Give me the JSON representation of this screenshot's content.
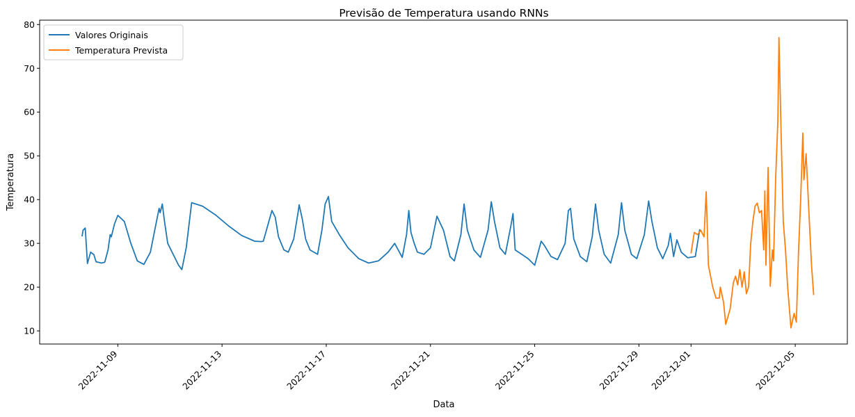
{
  "chart_data": {
    "type": "line",
    "title": "Previsão de Temperatura usando RNNs",
    "xlabel": "Data",
    "ylabel": "Temperatura",
    "xlim": [
      "2022-11-06 00:00",
      "2022-12-07 00:00"
    ],
    "ylim": [
      7,
      81
    ],
    "x_ticks": [
      "2022-11-09",
      "2022-11-13",
      "2022-11-17",
      "2022-11-21",
      "2022-11-25",
      "2022-11-29",
      "2022-12-01",
      "2022-12-05"
    ],
    "y_ticks": [
      10,
      20,
      30,
      40,
      50,
      60,
      70,
      80
    ],
    "legend_position": "top-left",
    "grid": false,
    "series": [
      {
        "name": "Valores Originais",
        "color": "#1f77b4",
        "points": [
          [
            "2022-11-07 15:00",
            31.6
          ],
          [
            "2022-11-07 16:00",
            33.0
          ],
          [
            "2022-11-07 18:00",
            33.5
          ],
          [
            "2022-11-07 20:00",
            25.4
          ],
          [
            "2022-11-07 23:00",
            28.0
          ],
          [
            "2022-11-08 02:00",
            27.4
          ],
          [
            "2022-11-08 04:00",
            25.8
          ],
          [
            "2022-11-08 09:00",
            25.5
          ],
          [
            "2022-11-08 12:00",
            25.7
          ],
          [
            "2022-11-08 15:00",
            28.5
          ],
          [
            "2022-11-08 17:00",
            32.0
          ],
          [
            "2022-11-08 18:00",
            31.5
          ],
          [
            "2022-11-08 21:00",
            34.5
          ],
          [
            "2022-11-09 00:00",
            36.4
          ],
          [
            "2022-11-09 06:00",
            35.0
          ],
          [
            "2022-11-09 12:00",
            30.0
          ],
          [
            "2022-11-09 18:00",
            26.0
          ],
          [
            "2022-11-10 00:00",
            25.2
          ],
          [
            "2022-11-10 06:00",
            28.0
          ],
          [
            "2022-11-10 10:00",
            33.0
          ],
          [
            "2022-11-10 14:00",
            38.0
          ],
          [
            "2022-11-10 15:00",
            37.0
          ],
          [
            "2022-11-10 17:00",
            39.0
          ],
          [
            "2022-11-10 19:00",
            35.0
          ],
          [
            "2022-11-10 22:00",
            30.0
          ],
          [
            "2022-11-11 03:00",
            27.5
          ],
          [
            "2022-11-11 08:00",
            25.0
          ],
          [
            "2022-11-11 11:00",
            24.0
          ],
          [
            "2022-11-11 15:00",
            29.0
          ],
          [
            "2022-11-11 20:00",
            39.3
          ],
          [
            "2022-11-12 06:00",
            38.5
          ],
          [
            "2022-11-12 18:00",
            36.5
          ],
          [
            "2022-11-13 06:00",
            34.0
          ],
          [
            "2022-11-13 18:00",
            31.8
          ],
          [
            "2022-11-14 06:00",
            30.5
          ],
          [
            "2022-11-14 12:00",
            30.4
          ],
          [
            "2022-11-14 14:00",
            30.5
          ],
          [
            "2022-11-14 18:00",
            34.0
          ],
          [
            "2022-11-14 22:00",
            37.5
          ],
          [
            "2022-11-15 01:00",
            36.0
          ],
          [
            "2022-11-15 04:00",
            31.5
          ],
          [
            "2022-11-15 09:00",
            28.5
          ],
          [
            "2022-11-15 13:00",
            28.0
          ],
          [
            "2022-11-15 18:00",
            31.0
          ],
          [
            "2022-11-15 22:00",
            37.0
          ],
          [
            "2022-11-15 23:00",
            38.8
          ],
          [
            "2022-11-16 02:00",
            35.5
          ],
          [
            "2022-11-16 05:00",
            31.0
          ],
          [
            "2022-11-16 09:00",
            28.5
          ],
          [
            "2022-11-16 16:00",
            27.5
          ],
          [
            "2022-11-16 20:00",
            33.0
          ],
          [
            "2022-11-16 23:00",
            39.0
          ],
          [
            "2022-11-17 02:00",
            40.7
          ],
          [
            "2022-11-17 05:00",
            35.0
          ],
          [
            "2022-11-17 12:00",
            32.0
          ],
          [
            "2022-11-17 20:00",
            29.0
          ],
          [
            "2022-11-18 06:00",
            26.5
          ],
          [
            "2022-11-18 15:00",
            25.5
          ],
          [
            "2022-11-19 00:00",
            26.0
          ],
          [
            "2022-11-19 09:00",
            28.0
          ],
          [
            "2022-11-19 15:00",
            30.0
          ],
          [
            "2022-11-19 22:00",
            26.8
          ],
          [
            "2022-11-20 02:00",
            32.0
          ],
          [
            "2022-11-20 04:00",
            37.5
          ],
          [
            "2022-11-20 06:00",
            32.5
          ],
          [
            "2022-11-20 09:00",
            30.0
          ],
          [
            "2022-11-20 12:00",
            28.0
          ],
          [
            "2022-11-20 18:00",
            27.5
          ],
          [
            "2022-11-21 00:00",
            29.0
          ],
          [
            "2022-11-21 06:00",
            36.2
          ],
          [
            "2022-11-21 12:00",
            33.0
          ],
          [
            "2022-11-21 18:00",
            27.0
          ],
          [
            "2022-11-21 22:00",
            26.0
          ],
          [
            "2022-11-22 04:00",
            32.0
          ],
          [
            "2022-11-22 07:00",
            39.0
          ],
          [
            "2022-11-22 10:00",
            33.0
          ],
          [
            "2022-11-22 16:00",
            28.5
          ],
          [
            "2022-11-22 22:00",
            26.8
          ],
          [
            "2022-11-23 05:00",
            33.0
          ],
          [
            "2022-11-23 08:00",
            39.5
          ],
          [
            "2022-11-23 11:00",
            35.0
          ],
          [
            "2022-11-23 16:00",
            29.0
          ],
          [
            "2022-11-23 21:00",
            27.5
          ],
          [
            "2022-11-24 02:00",
            34.0
          ],
          [
            "2022-11-24 04:00",
            36.8
          ],
          [
            "2022-11-24 06:00",
            28.5
          ],
          [
            "2022-11-24 12:00",
            27.5
          ],
          [
            "2022-11-24 18:00",
            26.5
          ],
          [
            "2022-11-25 00:00",
            25.0
          ],
          [
            "2022-11-25 06:00",
            30.5
          ],
          [
            "2022-11-25 09:00",
            29.5
          ],
          [
            "2022-11-25 15:00",
            27.0
          ],
          [
            "2022-11-25 21:00",
            26.3
          ],
          [
            "2022-11-26 04:00",
            30.0
          ],
          [
            "2022-11-26 07:00",
            37.5
          ],
          [
            "2022-11-26 09:00",
            38.0
          ],
          [
            "2022-11-26 12:00",
            31.0
          ],
          [
            "2022-11-26 18:00",
            27.0
          ],
          [
            "2022-11-27 00:00",
            25.8
          ],
          [
            "2022-11-27 05:00",
            31.5
          ],
          [
            "2022-11-27 08:00",
            39.0
          ],
          [
            "2022-11-27 11:00",
            33.0
          ],
          [
            "2022-11-27 16:00",
            27.5
          ],
          [
            "2022-11-27 22:00",
            25.5
          ],
          [
            "2022-11-28 05:00",
            32.0
          ],
          [
            "2022-11-28 08:00",
            39.3
          ],
          [
            "2022-11-28 11:00",
            33.0
          ],
          [
            "2022-11-28 17:00",
            27.5
          ],
          [
            "2022-11-28 22:00",
            26.5
          ],
          [
            "2022-11-29 05:00",
            32.0
          ],
          [
            "2022-11-29 09:00",
            39.7
          ],
          [
            "2022-11-29 12:00",
            35.0
          ],
          [
            "2022-11-29 17:00",
            29.0
          ],
          [
            "2022-11-29 22:00",
            26.5
          ],
          [
            "2022-11-30 03:00",
            29.5
          ],
          [
            "2022-11-30 05:00",
            32.3
          ],
          [
            "2022-11-30 08:00",
            27.0
          ],
          [
            "2022-11-30 11:00",
            30.8
          ],
          [
            "2022-11-30 15:00",
            28.0
          ],
          [
            "2022-11-30 21:00",
            26.7
          ],
          [
            "2022-12-01 04:00",
            27.0
          ],
          [
            "2022-12-01 08:00",
            33.2
          ]
        ]
      },
      {
        "name": "Temperatura Prevista",
        "color": "#ff7f0e",
        "points": [
          [
            "2022-12-01 00:00",
            27.7
          ],
          [
            "2022-12-01 03:00",
            32.5
          ],
          [
            "2022-12-01 06:00",
            32.0
          ],
          [
            "2022-12-01 09:00",
            33.0
          ],
          [
            "2022-12-01 12:00",
            31.5
          ],
          [
            "2022-12-01 14:00",
            41.8
          ],
          [
            "2022-12-01 16:00",
            25.0
          ],
          [
            "2022-12-01 20:00",
            20.0
          ],
          [
            "2022-12-01 23:00",
            17.5
          ],
          [
            "2022-12-02 02:00",
            17.5
          ],
          [
            "2022-12-02 03:00",
            20.0
          ],
          [
            "2022-12-02 06:00",
            16.5
          ],
          [
            "2022-12-02 08:00",
            11.5
          ],
          [
            "2022-12-02 12:00",
            15.0
          ],
          [
            "2022-12-02 15:00",
            21.0
          ],
          [
            "2022-12-02 17:00",
            22.5
          ],
          [
            "2022-12-02 19:00",
            20.5
          ],
          [
            "2022-12-02 21:00",
            24.0
          ],
          [
            "2022-12-02 23:00",
            20.0
          ],
          [
            "2022-12-03 01:00",
            23.5
          ],
          [
            "2022-12-03 03:00",
            18.5
          ],
          [
            "2022-12-03 05:00",
            20.0
          ],
          [
            "2022-12-03 07:00",
            30.0
          ],
          [
            "2022-12-03 09:00",
            35.0
          ],
          [
            "2022-12-03 11:00",
            38.5
          ],
          [
            "2022-12-03 13:00",
            39.2
          ],
          [
            "2022-12-03 15:00",
            37.0
          ],
          [
            "2022-12-03 17:00",
            37.5
          ],
          [
            "2022-12-03 19:00",
            28.5
          ],
          [
            "2022-12-03 20:00",
            42.0
          ],
          [
            "2022-12-03 21:00",
            25.0
          ],
          [
            "2022-12-03 23:00",
            47.3
          ],
          [
            "2022-12-04 01:00",
            20.2
          ],
          [
            "2022-12-04 03:00",
            28.5
          ],
          [
            "2022-12-04 04:00",
            26.0
          ],
          [
            "2022-12-04 06:00",
            45.0
          ],
          [
            "2022-12-04 08:00",
            58.0
          ],
          [
            "2022-12-04 09:00",
            77.0
          ],
          [
            "2022-12-04 11:00",
            55.0
          ],
          [
            "2022-12-04 13:00",
            35.0
          ],
          [
            "2022-12-04 15:00",
            28.5
          ],
          [
            "2022-12-04 17:00",
            20.0
          ],
          [
            "2022-12-04 20:00",
            10.7
          ],
          [
            "2022-12-04 23:00",
            14.0
          ],
          [
            "2022-12-05 01:00",
            12.0
          ],
          [
            "2022-12-05 03:00",
            28.0
          ],
          [
            "2022-12-05 05:00",
            40.0
          ],
          [
            "2022-12-05 07:00",
            55.2
          ],
          [
            "2022-12-05 08:00",
            44.5
          ],
          [
            "2022-12-05 10:00",
            50.5
          ],
          [
            "2022-12-05 13:00",
            35.0
          ],
          [
            "2022-12-05 15:00",
            25.0
          ],
          [
            "2022-12-05 17:00",
            18.2
          ]
        ]
      }
    ]
  }
}
